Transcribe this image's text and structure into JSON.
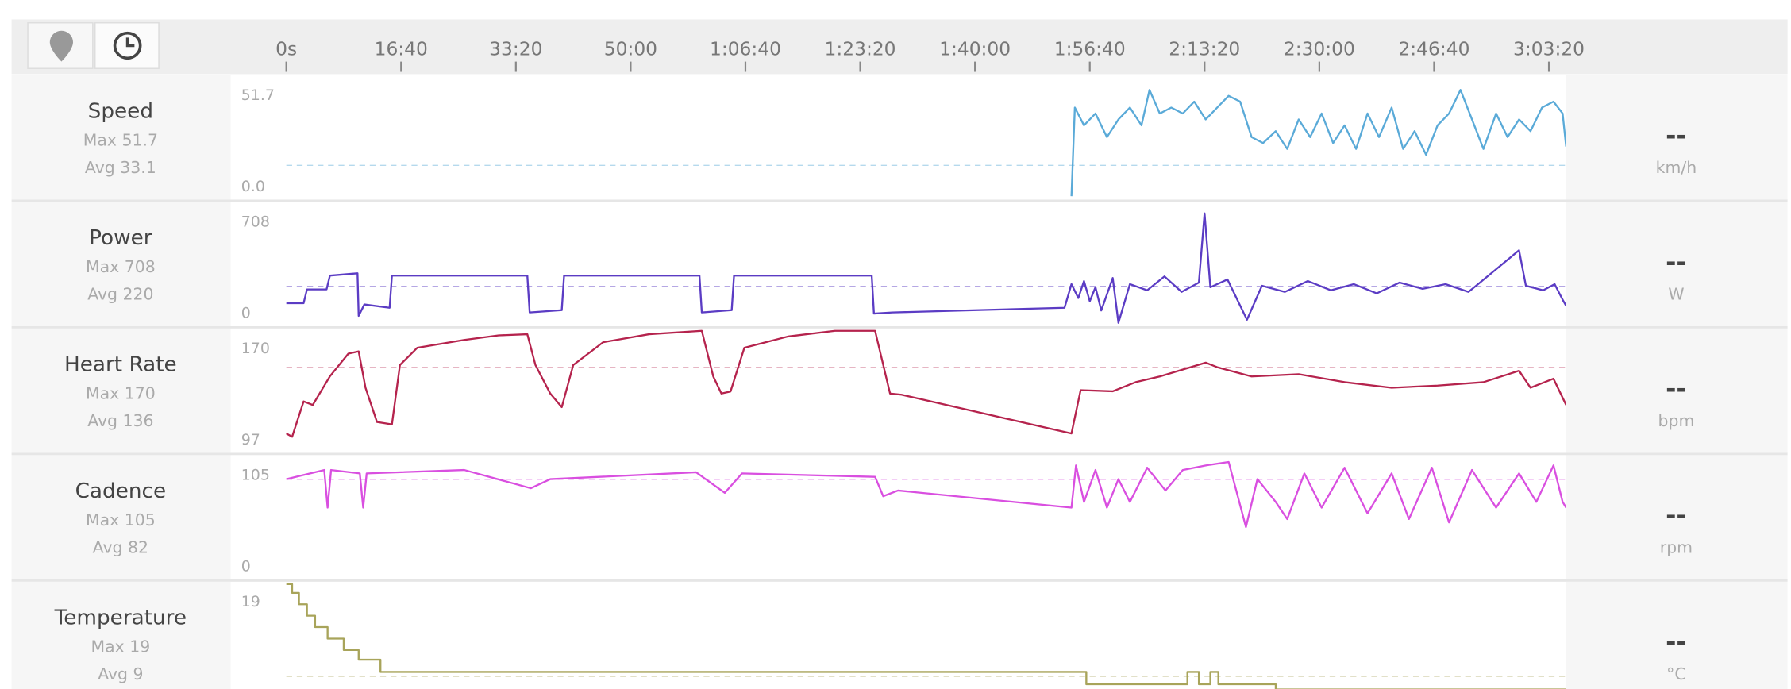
{
  "time_axis": {
    "xlim": [
      0,
      11150
    ],
    "xticks": [
      {
        "value": 0,
        "label": "0s"
      },
      {
        "value": 1000,
        "label": "16:40"
      },
      {
        "value": 2000,
        "label": "33:20"
      },
      {
        "value": 3000,
        "label": "50:00"
      },
      {
        "value": 4000,
        "label": "1:06:40"
      },
      {
        "value": 5000,
        "label": "1:23:20"
      },
      {
        "value": 6000,
        "label": "1:40:00"
      },
      {
        "value": 7000,
        "label": "1:56:40"
      },
      {
        "value": 8000,
        "label": "2:13:20"
      },
      {
        "value": 9000,
        "label": "2:30:00"
      },
      {
        "value": 10000,
        "label": "2:46:40"
      },
      {
        "value": 11000,
        "label": "3:03:20"
      }
    ]
  },
  "chart_data": [
    {
      "type": "line",
      "title": "Speed",
      "max_label": "Max 51.7",
      "avg_label": "Avg 33.1",
      "current": "--",
      "unit": "km/h",
      "color": "#5aaad8",
      "ylim": [
        0,
        53.8
      ],
      "yticks": [
        {
          "value": 0,
          "label": "0.0"
        },
        51.7
      ],
      "reference_line": 14,
      "x": [
        6840,
        6870,
        6950,
        7050,
        7150,
        7250,
        7350,
        7450,
        7520,
        7610,
        7710,
        7810,
        7910,
        8010,
        8110,
        8210,
        8310,
        8410,
        8510,
        8620,
        8720,
        8820,
        8920,
        9020,
        9120,
        9220,
        9320,
        9420,
        9520,
        9630,
        9730,
        9830,
        9930,
        10030,
        10130,
        10230,
        10330,
        10430,
        10540,
        10640,
        10740,
        10840,
        10940,
        11040,
        11120,
        11150
      ],
      "values": [
        0,
        40.2,
        32.1,
        37.5,
        26.8,
        34.8,
        40.2,
        32.1,
        48.2,
        37.5,
        40.2,
        37.5,
        42.9,
        34.8,
        40.2,
        45.5,
        42.9,
        26.8,
        24.1,
        29.5,
        21.4,
        34.8,
        26.8,
        37.5,
        24.1,
        32.1,
        21.4,
        37.5,
        26.8,
        40.2,
        21.4,
        29.5,
        18.8,
        32.1,
        37.5,
        48.2,
        34.8,
        21.4,
        37.5,
        26.8,
        34.8,
        29.5,
        40.2,
        42.9,
        37.5,
        22.5
      ]
    },
    {
      "type": "line",
      "title": "Power",
      "max_label": "Max 708",
      "avg_label": "Avg 220",
      "current": "--",
      "unit": "W",
      "color": "#5b3cc4",
      "ylim": [
        0,
        767
      ],
      "yticks": [
        0,
        708
      ],
      "reference_line": 236,
      "x": [
        0,
        150,
        180,
        350,
        380,
        620,
        630,
        680,
        900,
        920,
        2100,
        2120,
        2400,
        2420,
        3600,
        3620,
        3880,
        3900,
        5100,
        5120,
        5280,
        6780,
        6840,
        6900,
        6950,
        7000,
        7050,
        7100,
        7200,
        7250,
        7350,
        7500,
        7650,
        7800,
        7950,
        8000,
        8050,
        8200,
        8370,
        8500,
        8700,
        8900,
        9100,
        9300,
        9500,
        9700,
        9900,
        10100,
        10300,
        10400,
        10740,
        10800,
        10950,
        11050,
        11120,
        11150
      ],
      "values": [
        127,
        127,
        216,
        216,
        305,
        320,
        45,
        119,
        97,
        305,
        305,
        67,
        82,
        305,
        305,
        67,
        82,
        305,
        305,
        60,
        67,
        97,
        250,
        160,
        270,
        140,
        230,
        80,
        290,
        0,
        250,
        210,
        300,
        200,
        260,
        708,
        230,
        280,
        20,
        240,
        200,
        270,
        210,
        250,
        190,
        260,
        220,
        250,
        200,
        260,
        469,
        240,
        210,
        250,
        150,
        110
      ]
    },
    {
      "type": "line",
      "title": "Heart Rate",
      "max_label": "Max 170",
      "avg_label": "Avg 136",
      "current": "--",
      "unit": "bpm",
      "color": "#b5234d",
      "ylim": [
        89.2,
        170
      ],
      "yticks": [
        97,
        170
      ],
      "reference_line": 145,
      "x": [
        0,
        50,
        150,
        230,
        380,
        540,
        630,
        690,
        790,
        920,
        990,
        1140,
        1550,
        1850,
        2100,
        2170,
        2300,
        2400,
        2500,
        2760,
        3160,
        3620,
        3720,
        3790,
        3870,
        3990,
        4370,
        4780,
        5130,
        5260,
        5360,
        6840,
        6920,
        7200,
        7400,
        7610,
        8010,
        8110,
        8410,
        8820,
        9220,
        9630,
        10030,
        10430,
        10740,
        10840,
        11040,
        11150
      ],
      "values": [
        100.1,
        97.8,
        121.9,
        119.5,
        139,
        154.5,
        156,
        131.2,
        107.9,
        106.3,
        146.7,
        158.4,
        163.8,
        166.9,
        167.7,
        146.7,
        127.3,
        118,
        146.7,
        162.2,
        167.7,
        170,
        138.9,
        127.3,
        128.7,
        158.4,
        166.1,
        170,
        170,
        127.3,
        126.5,
        100.1,
        129.6,
        128.8,
        135,
        138.9,
        148.3,
        145.2,
        138.9,
        140.5,
        135,
        131.2,
        132.7,
        135,
        142.8,
        131.2,
        137.4,
        119.5
      ]
    },
    {
      "type": "line",
      "title": "Cadence",
      "max_label": "Max 105",
      "avg_label": "Avg 82",
      "current": "--",
      "unit": "rpm",
      "color": "#d94fe0",
      "ylim": [
        0,
        109.2
      ],
      "yticks": [
        0,
        105
      ],
      "reference_line": 89,
      "x": [
        0,
        330,
        360,
        390,
        640,
        670,
        700,
        1550,
        2130,
        2300,
        3570,
        3820,
        3970,
        5130,
        5200,
        5330,
        6840,
        6880,
        6950,
        7050,
        7150,
        7250,
        7350,
        7500,
        7660,
        7810,
        8010,
        8210,
        8360,
        8460,
        8620,
        8720,
        8870,
        9020,
        9220,
        9420,
        9630,
        9780,
        9980,
        10130,
        10330,
        10540,
        10740,
        10890,
        11040,
        11120,
        11150
      ],
      "values": [
        89.3,
        97.7,
        63,
        97.7,
        94.5,
        63,
        94.5,
        97.7,
        80.9,
        89.3,
        95.6,
        76.7,
        94.5,
        91.4,
        73.5,
        78.8,
        63,
        101.9,
        68.3,
        97.7,
        63,
        89.3,
        68.3,
        99.8,
        78.8,
        97.7,
        101.9,
        105,
        45.2,
        89.3,
        68.3,
        52.5,
        94.5,
        63,
        99.8,
        57.8,
        94.5,
        52.5,
        99.8,
        49.4,
        97.7,
        63,
        94.5,
        68.3,
        101.9,
        68.3,
        63
      ]
    },
    {
      "type": "line",
      "title": "Temperature",
      "max_label": "Max 19",
      "avg_label": "Avg 9",
      "current": "--",
      "unit": "°C",
      "color": "#a8a45a",
      "ylim": [
        5.5,
        19
      ],
      "yticks": [
        19
      ],
      "reference_line": 8.5,
      "x": [
        0,
        50,
        50,
        110,
        110,
        180,
        180,
        250,
        250,
        360,
        360,
        500,
        500,
        630,
        630,
        820,
        820,
        6970,
        6970,
        7850,
        7850,
        7950,
        7950,
        8050,
        8050,
        8120,
        8120,
        8620,
        8620,
        11150
      ],
      "values": [
        19,
        19,
        18,
        18,
        16.7,
        16.7,
        15.4,
        15.4,
        14.1,
        14.1,
        12.8,
        12.8,
        11.5,
        11.5,
        10.4,
        10.4,
        9,
        9,
        7.6,
        7.6,
        9,
        9,
        7.6,
        7.6,
        9,
        9,
        7.6,
        7.6,
        7,
        7
      ]
    }
  ]
}
